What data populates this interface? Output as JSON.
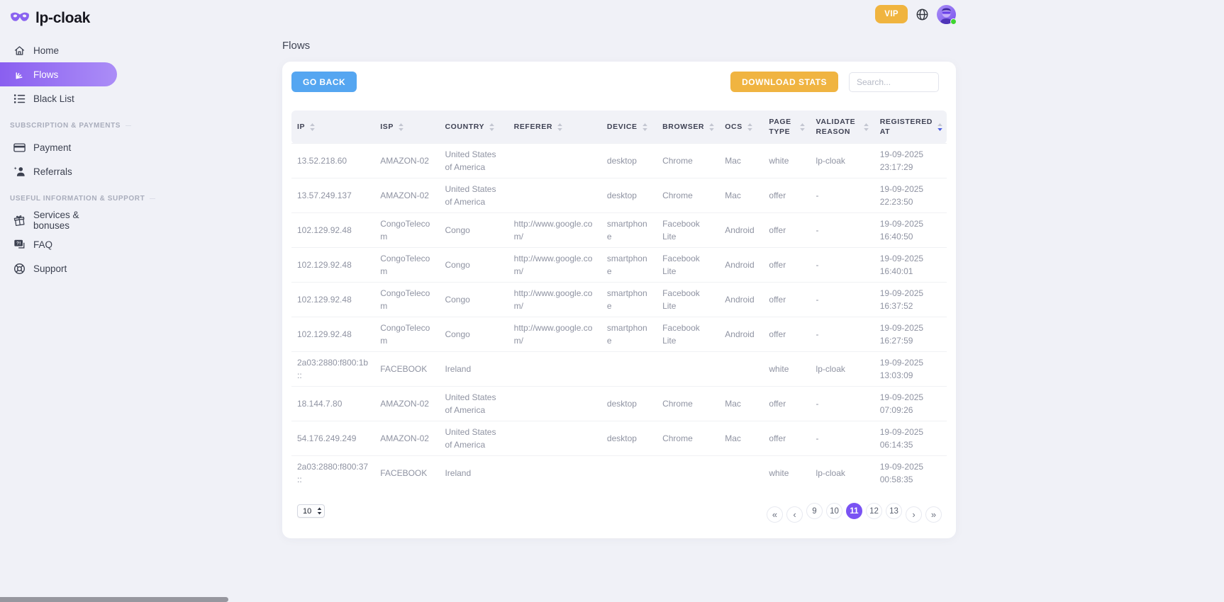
{
  "app": {
    "brand": "lp-cloak",
    "page_title": "Flows"
  },
  "topbar": {
    "vip_label": "VIP"
  },
  "sidebar": {
    "sections": [
      {
        "title": "",
        "items": [
          {
            "label": "Home"
          },
          {
            "label": "Flows"
          },
          {
            "label": "Black List"
          }
        ]
      },
      {
        "title": "SUBSCRIPTION & PAYMENTS",
        "items": [
          {
            "label": "Payment"
          },
          {
            "label": "Referrals"
          }
        ]
      },
      {
        "title": "USEFUL INFORMATION & SUPPORT",
        "items": [
          {
            "label": "Services & bonuses"
          },
          {
            "label": "FAQ"
          },
          {
            "label": "Support"
          }
        ]
      }
    ]
  },
  "toolbar": {
    "go_back_label": "GO BACK",
    "download_stats_label": "DOWNLOAD STATS",
    "search_placeholder": "Search..."
  },
  "table": {
    "columns": [
      "IP",
      "ISP",
      "COUNTRY",
      "REFERER",
      "DEVICE",
      "BROWSER",
      "OCS",
      "PAGE TYPE",
      "VALIDATE REASON",
      "REGISTERED AT"
    ],
    "sorted_column": "REGISTERED AT",
    "rows": [
      {
        "ip": "13.52.218.60",
        "isp": "AMAZON-02",
        "country": "United States of America",
        "referer": "",
        "device": "desktop",
        "browser": "Chrome",
        "ocs": "Mac",
        "page_type": "white",
        "validate_reason": "lp-cloak",
        "registered_date": "19-09-2025",
        "registered_time": "23:17:29"
      },
      {
        "ip": "13.57.249.137",
        "isp": "AMAZON-02",
        "country": "United States of America",
        "referer": "",
        "device": "desktop",
        "browser": "Chrome",
        "ocs": "Mac",
        "page_type": "offer",
        "validate_reason": "-",
        "registered_date": "19-09-2025",
        "registered_time": "22:23:50"
      },
      {
        "ip": "102.129.92.48",
        "isp": "CongoTelecom",
        "country": "Congo",
        "referer": "http://www.google.com/",
        "device": "smartphone",
        "browser": "Facebook Lite",
        "ocs": "Android",
        "page_type": "offer",
        "validate_reason": "-",
        "registered_date": "19-09-2025",
        "registered_time": "16:40:50"
      },
      {
        "ip": "102.129.92.48",
        "isp": "CongoTelecom",
        "country": "Congo",
        "referer": "http://www.google.com/",
        "device": "smartphone",
        "browser": "Facebook Lite",
        "ocs": "Android",
        "page_type": "offer",
        "validate_reason": "-",
        "registered_date": "19-09-2025",
        "registered_time": "16:40:01"
      },
      {
        "ip": "102.129.92.48",
        "isp": "CongoTelecom",
        "country": "Congo",
        "referer": "http://www.google.com/",
        "device": "smartphone",
        "browser": "Facebook Lite",
        "ocs": "Android",
        "page_type": "offer",
        "validate_reason": "-",
        "registered_date": "19-09-2025",
        "registered_time": "16:37:52"
      },
      {
        "ip": "102.129.92.48",
        "isp": "CongoTelecom",
        "country": "Congo",
        "referer": "http://www.google.com/",
        "device": "smartphone",
        "browser": "Facebook Lite",
        "ocs": "Android",
        "page_type": "offer",
        "validate_reason": "-",
        "registered_date": "19-09-2025",
        "registered_time": "16:27:59"
      },
      {
        "ip": "2a03:2880:f800:1b::",
        "isp": "FACEBOOK",
        "country": "Ireland",
        "referer": "",
        "device": "",
        "browser": "",
        "ocs": "",
        "page_type": "white",
        "validate_reason": "lp-cloak",
        "registered_date": "19-09-2025",
        "registered_time": "13:03:09"
      },
      {
        "ip": "18.144.7.80",
        "isp": "AMAZON-02",
        "country": "United States of America",
        "referer": "",
        "device": "desktop",
        "browser": "Chrome",
        "ocs": "Mac",
        "page_type": "offer",
        "validate_reason": "-",
        "registered_date": "19-09-2025",
        "registered_time": "07:09:26"
      },
      {
        "ip": "54.176.249.249",
        "isp": "AMAZON-02",
        "country": "United States of America",
        "referer": "",
        "device": "desktop",
        "browser": "Chrome",
        "ocs": "Mac",
        "page_type": "offer",
        "validate_reason": "-",
        "registered_date": "19-09-2025",
        "registered_time": "06:14:35"
      },
      {
        "ip": "2a03:2880:f800:37::",
        "isp": "FACEBOOK",
        "country": "Ireland",
        "referer": "",
        "device": "",
        "browser": "",
        "ocs": "",
        "page_type": "white",
        "validate_reason": "lp-cloak",
        "registered_date": "19-09-2025",
        "registered_time": "00:58:35"
      }
    ]
  },
  "pagination": {
    "page_size": "10",
    "pages": [
      "9",
      "10",
      "11",
      "12",
      "13"
    ],
    "active_page": "11",
    "first_label": "«",
    "prev_label": "‹",
    "next_label": "›",
    "last_label": "»"
  },
  "colors": {
    "accent_purple": "#7a53f3",
    "accent_blue": "#55a6f1",
    "accent_amber": "#f0b441",
    "online_green": "#3ed52f",
    "page_background": "#f0f1f7"
  }
}
